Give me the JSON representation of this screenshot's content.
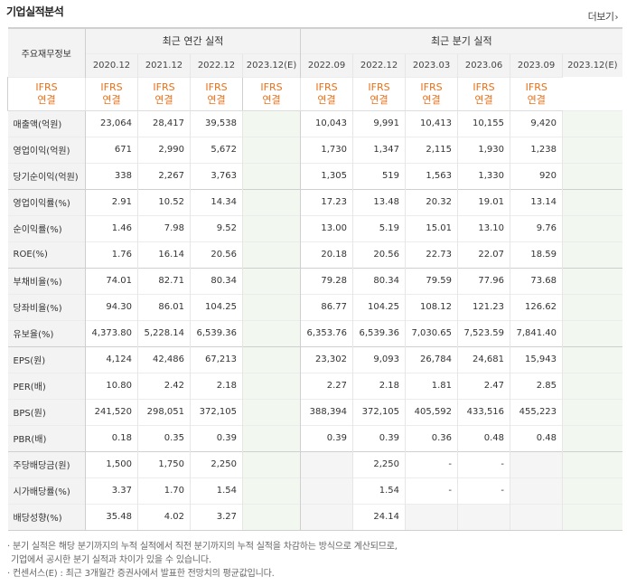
{
  "title": "기업실적분석",
  "more": "더보기",
  "header": {
    "row_label": "주요재무정보",
    "annual": "최근 연간 실적",
    "quarterly": "최근 분기 실적"
  },
  "annual_periods": [
    "2020.12",
    "2021.12",
    "2022.12",
    "2023.12(E)"
  ],
  "quarter_periods": [
    "2022.09",
    "2022.12",
    "2023.03",
    "2023.06",
    "2023.09",
    "2023.12(E)"
  ],
  "basis_top": "IFRS",
  "basis_bottom": "연결",
  "rows": [
    {
      "label": "매출액(억원)",
      "annual": [
        "23,064",
        "28,417",
        "39,538",
        ""
      ],
      "quarter": [
        "10,043",
        "9,991",
        "10,413",
        "10,155",
        "9,420",
        ""
      ]
    },
    {
      "label": "영업이익(억원)",
      "annual": [
        "671",
        "2,990",
        "5,672",
        ""
      ],
      "quarter": [
        "1,730",
        "1,347",
        "2,115",
        "1,930",
        "1,238",
        ""
      ]
    },
    {
      "label": "당기순이익(억원)",
      "annual": [
        "338",
        "2,267",
        "3,763",
        ""
      ],
      "quarter": [
        "1,305",
        "519",
        "1,563",
        "1,330",
        "920",
        ""
      ]
    },
    {
      "label": "영업이익률(%)",
      "annual": [
        "2.91",
        "10.52",
        "14.34",
        ""
      ],
      "quarter": [
        "17.23",
        "13.48",
        "20.32",
        "19.01",
        "13.14",
        ""
      ]
    },
    {
      "label": "순이익률(%)",
      "annual": [
        "1.46",
        "7.98",
        "9.52",
        ""
      ],
      "quarter": [
        "13.00",
        "5.19",
        "15.01",
        "13.10",
        "9.76",
        ""
      ]
    },
    {
      "label": "ROE(%)",
      "annual": [
        "1.76",
        "16.14",
        "20.56",
        ""
      ],
      "quarter": [
        "20.18",
        "20.56",
        "22.73",
        "22.07",
        "18.59",
        ""
      ]
    },
    {
      "label": "부채비율(%)",
      "annual": [
        "74.01",
        "82.71",
        "80.34",
        ""
      ],
      "quarter": [
        "79.28",
        "80.34",
        "79.59",
        "77.96",
        "73.68",
        ""
      ]
    },
    {
      "label": "당좌비율(%)",
      "annual": [
        "94.30",
        "86.01",
        "104.25",
        ""
      ],
      "quarter": [
        "86.77",
        "104.25",
        "108.12",
        "121.23",
        "126.62",
        ""
      ]
    },
    {
      "label": "유보율(%)",
      "annual": [
        "4,373.80",
        "5,228.14",
        "6,539.36",
        ""
      ],
      "quarter": [
        "6,353.76",
        "6,539.36",
        "7,030.65",
        "7,523.59",
        "7,841.40",
        ""
      ]
    },
    {
      "label": "EPS(원)",
      "annual": [
        "4,124",
        "42,486",
        "67,213",
        ""
      ],
      "quarter": [
        "23,302",
        "9,093",
        "26,784",
        "24,681",
        "15,943",
        ""
      ]
    },
    {
      "label": "PER(배)",
      "annual": [
        "10.80",
        "2.42",
        "2.18",
        ""
      ],
      "quarter": [
        "2.27",
        "2.18",
        "1.81",
        "2.47",
        "2.85",
        ""
      ]
    },
    {
      "label": "BPS(원)",
      "annual": [
        "241,520",
        "298,051",
        "372,105",
        ""
      ],
      "quarter": [
        "388,394",
        "372,105",
        "405,592",
        "433,516",
        "455,223",
        ""
      ]
    },
    {
      "label": "PBR(배)",
      "annual": [
        "0.18",
        "0.35",
        "0.39",
        ""
      ],
      "quarter": [
        "0.39",
        "0.39",
        "0.36",
        "0.48",
        "0.48",
        ""
      ]
    },
    {
      "label": "주당배당금(원)",
      "annual": [
        "1,500",
        "1,750",
        "2,250",
        ""
      ],
      "quarter": [
        "",
        "2,250",
        "-",
        "-",
        "",
        ""
      ]
    },
    {
      "label": "시가배당률(%)",
      "annual": [
        "3.37",
        "1.70",
        "1.54",
        ""
      ],
      "quarter": [
        "",
        "1.54",
        "-",
        "-",
        "",
        ""
      ]
    },
    {
      "label": "배당성향(%)",
      "annual": [
        "35.48",
        "4.02",
        "3.27",
        ""
      ],
      "quarter": [
        "",
        "24.14",
        "",
        "",
        "",
        ""
      ]
    }
  ],
  "notes": [
    "· 분기 실적은 해당 분기까지의 누적 실적에서 직전 분기까지의 누적 실적을 차감하는 방식으로 계산되므로,",
    "  기업에서 공시한 분기 실적과 차이가 있을 수 있습니다.",
    "· 컨센서스(E) : 최근 3개월간 증권사에서 발표한 전망치의 평균값입니다."
  ],
  "colors": {
    "accent_orange": "#e8701a",
    "estimate_bg": "#f2f8ef",
    "header_bg": "#f3f3f3"
  }
}
